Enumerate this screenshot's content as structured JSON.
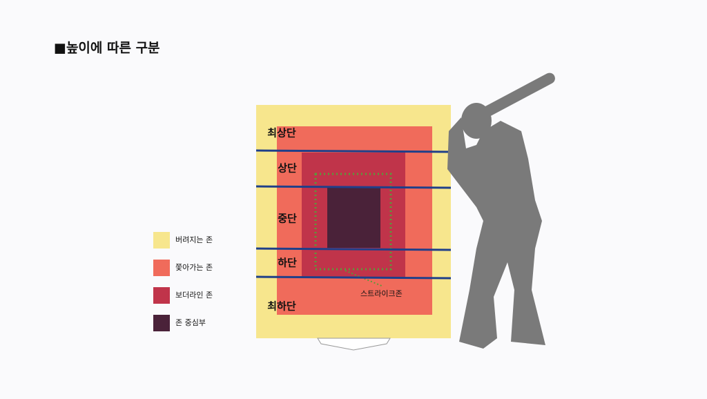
{
  "header": {
    "title": "■높이에 따른 구분"
  },
  "legend": {
    "items": [
      {
        "label": "버려지는 존"
      },
      {
        "label": "쫓아가는 존"
      },
      {
        "label": "보더라인 존"
      },
      {
        "label": "존 중심부"
      }
    ]
  },
  "zones": {
    "labels": [
      "최상단",
      "상단",
      "중단",
      "하단",
      "최하단"
    ]
  },
  "strike_zone": {
    "label": "스트라이크존"
  }
}
